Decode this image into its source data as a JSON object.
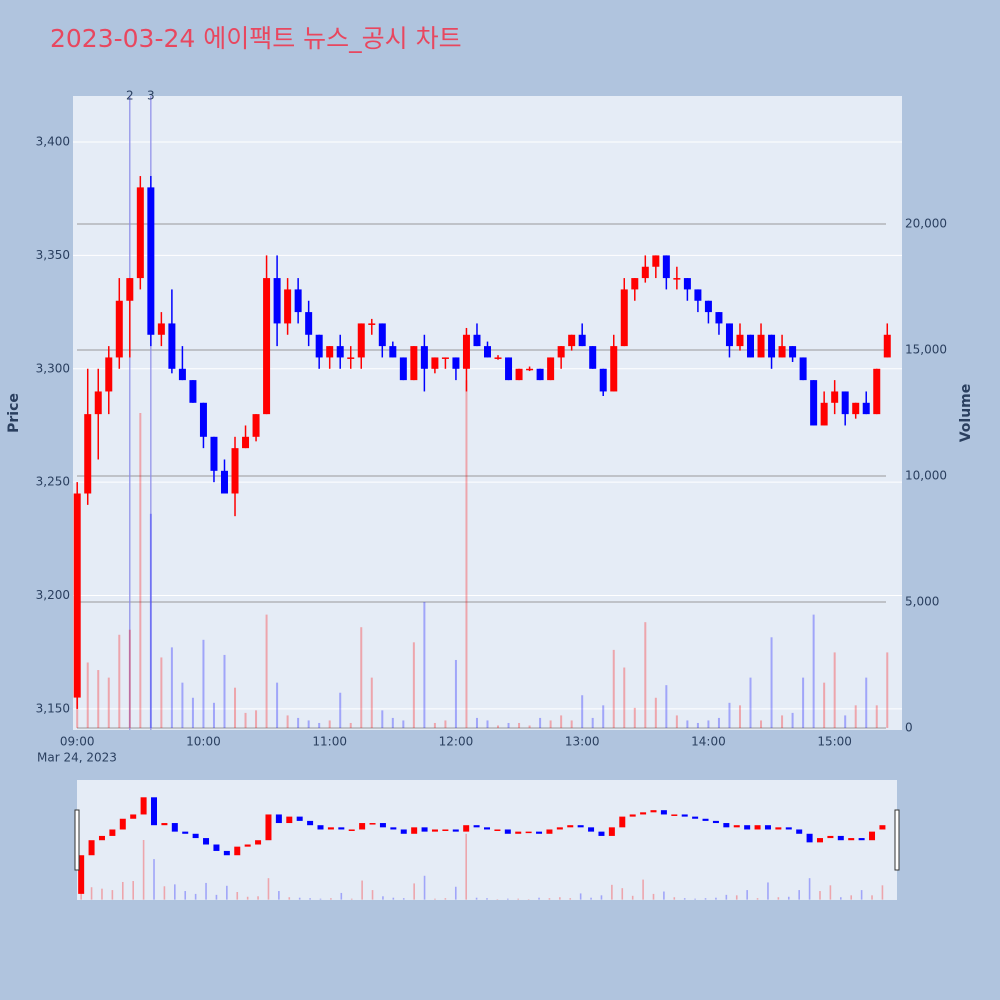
{
  "chart_data": {
    "type": "candlestick",
    "title": "2023-03-24 에이팩트 뉴스_공시 차트",
    "x": [
      "09:00",
      "09:05",
      "09:10",
      "09:15",
      "09:20",
      "09:25",
      "09:30",
      "09:35",
      "09:40",
      "09:45",
      "09:50",
      "09:55",
      "10:00",
      "10:05",
      "10:10",
      "10:15",
      "10:20",
      "10:25",
      "10:30",
      "10:35",
      "10:40",
      "10:45",
      "10:50",
      "10:55",
      "11:00",
      "11:05",
      "11:10",
      "11:15",
      "11:20",
      "11:25",
      "11:30",
      "11:35",
      "11:40",
      "11:45",
      "11:50",
      "11:55",
      "12:00",
      "12:05",
      "12:10",
      "12:15",
      "12:20",
      "12:25",
      "12:30",
      "12:35",
      "12:40",
      "12:45",
      "12:50",
      "12:55",
      "13:00",
      "13:05",
      "13:10",
      "13:15",
      "13:20",
      "13:25",
      "13:30",
      "13:35",
      "13:40",
      "13:45",
      "13:50",
      "13:55",
      "14:00",
      "14:05",
      "14:10",
      "14:15",
      "14:20",
      "14:25",
      "14:30",
      "14:35",
      "14:40",
      "14:45",
      "14:50",
      "14:55",
      "15:00",
      "15:05",
      "15:10",
      "15:15",
      "15:20",
      "15:25"
    ],
    "open": [
      3155,
      3245,
      3280,
      3290,
      3305,
      3330,
      3340,
      3380,
      3315,
      3320,
      3300,
      3295,
      3285,
      3270,
      3255,
      3245,
      3265,
      3270,
      3280,
      3340,
      3320,
      3335,
      3325,
      3315,
      3305,
      3310,
      3305,
      3305,
      3320,
      3320,
      3310,
      3305,
      3295,
      3310,
      3300,
      3305,
      3305,
      3300,
      3315,
      3310,
      3305,
      3305,
      3295,
      3300,
      3300,
      3295,
      3305,
      3310,
      3315,
      3310,
      3300,
      3290,
      3310,
      3335,
      3340,
      3345,
      3350,
      3340,
      3340,
      3335,
      3330,
      3325,
      3320,
      3310,
      3315,
      3305,
      3315,
      3305,
      3310,
      3305,
      3295,
      3275,
      3285,
      3290,
      3280,
      3285,
      3280,
      3305
    ],
    "high": [
      3250,
      3300,
      3300,
      3310,
      3340,
      3340,
      3385,
      3385,
      3325,
      3335,
      3310,
      3295,
      3285,
      3270,
      3260,
      3270,
      3275,
      3280,
      3350,
      3350,
      3340,
      3340,
      3330,
      3315,
      3310,
      3315,
      3310,
      3320,
      3322,
      3320,
      3312,
      3305,
      3310,
      3315,
      3305,
      3305,
      3305,
      3318,
      3320,
      3312,
      3306,
      3305,
      3300,
      3301,
      3300,
      3305,
      3310,
      3315,
      3320,
      3310,
      3300,
      3315,
      3340,
      3340,
      3350,
      3350,
      3350,
      3345,
      3340,
      3335,
      3330,
      3325,
      3320,
      3320,
      3315,
      3320,
      3315,
      3315,
      3310,
      3305,
      3295,
      3290,
      3295,
      3290,
      3285,
      3290,
      3300,
      3320
    ],
    "low": [
      3150,
      3240,
      3260,
      3280,
      3300,
      3305,
      3335,
      3310,
      3310,
      3298,
      3295,
      3285,
      3265,
      3250,
      3245,
      3235,
      3265,
      3268,
      3280,
      3310,
      3315,
      3320,
      3310,
      3300,
      3300,
      3300,
      3300,
      3300,
      3315,
      3305,
      3305,
      3295,
      3295,
      3290,
      3298,
      3300,
      3295,
      3290,
      3310,
      3305,
      3304,
      3295,
      3295,
      3299,
      3295,
      3295,
      3300,
      3308,
      3310,
      3300,
      3288,
      3290,
      3310,
      3330,
      3338,
      3340,
      3335,
      3335,
      3330,
      3325,
      3320,
      3315,
      3305,
      3308,
      3305,
      3305,
      3300,
      3305,
      3303,
      3295,
      3275,
      3275,
      3280,
      3275,
      3278,
      3280,
      3280,
      3305
    ],
    "close": [
      3245,
      3280,
      3290,
      3305,
      3330,
      3340,
      3380,
      3315,
      3320,
      3300,
      3295,
      3285,
      3270,
      3255,
      3245,
      3265,
      3270,
      3280,
      3340,
      3320,
      3335,
      3325,
      3315,
      3305,
      3310,
      3305,
      3305,
      3320,
      3320,
      3310,
      3305,
      3295,
      3310,
      3300,
      3305,
      3305,
      3300,
      3315,
      3310,
      3305,
      3305,
      3295,
      3300,
      3300,
      3295,
      3305,
      3310,
      3315,
      3310,
      3300,
      3290,
      3310,
      3335,
      3340,
      3345,
      3350,
      3340,
      3340,
      3335,
      3330,
      3325,
      3320,
      3310,
      3315,
      3305,
      3315,
      3305,
      3310,
      3305,
      3295,
      3275,
      3285,
      3290,
      3280,
      3285,
      3280,
      3300,
      3315
    ],
    "volume": [
      3000,
      2600,
      2300,
      2000,
      3700,
      3900,
      12500,
      8500,
      2800,
      3200,
      1800,
      1200,
      3500,
      1000,
      2900,
      1600,
      600,
      700,
      4500,
      1800,
      500,
      400,
      300,
      200,
      300,
      1400,
      200,
      4000,
      2000,
      700,
      400,
      300,
      3400,
      5000,
      200,
      300,
      2700,
      13800,
      400,
      300,
      100,
      200,
      200,
      100,
      400,
      300,
      500,
      300,
      1300,
      400,
      900,
      3100,
      2400,
      800,
      4200,
      1200,
      1700,
      500,
      300,
      200,
      300,
      400,
      1000,
      900,
      2000,
      300,
      3600,
      500,
      600,
      2000,
      4500,
      1800,
      3000,
      500,
      900,
      2000,
      900,
      3000
    ],
    "up_color": "#ff0000",
    "down_color": "#0000ff",
    "xlim": [
      "08:58",
      "15:32"
    ],
    "xticks": [
      "09:00",
      "10:00",
      "11:00",
      "12:00",
      "13:00",
      "14:00",
      "15:00"
    ],
    "x_date_label": "Mar 24, 2023",
    "ylabel": "Price",
    "y2label": "Volume",
    "ylim": [
      3140.7,
      3420.3
    ],
    "yticks": [
      {
        "value": 3150,
        "label": "3,150"
      },
      {
        "value": 3200,
        "label": "3,200"
      },
      {
        "value": 3250,
        "label": "3,250"
      },
      {
        "value": 3300,
        "label": "3,300"
      },
      {
        "value": 3350,
        "label": "3,350"
      },
      {
        "value": 3400,
        "label": "3,400"
      }
    ],
    "y2lim": [
      -79,
      25079
    ],
    "y2ticks": [
      0,
      {
        "value": 5000,
        "label": "5,000"
      },
      {
        "value": 10000,
        "label": "10,000"
      },
      {
        "value": 15000,
        "label": "15,000"
      },
      {
        "value": 20000,
        "label": "20,000"
      }
    ],
    "markers": [
      {
        "x": "09:25",
        "label": "2"
      },
      {
        "x": "09:35",
        "label": "3"
      }
    ]
  }
}
